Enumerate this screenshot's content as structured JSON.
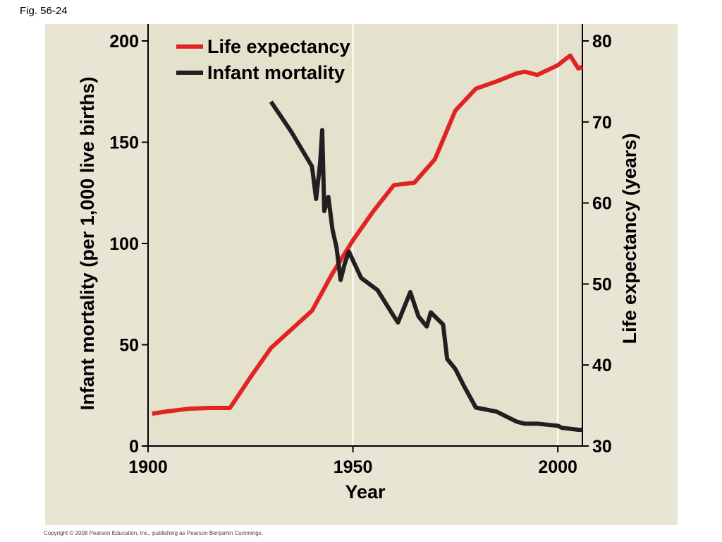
{
  "figure_label": "Fig. 56-24",
  "copyright": "Copyright © 2008 Pearson Education, Inc., publishing as Pearson Benjamin Cummings.",
  "colors": {
    "panel": "#e8e5d4",
    "plot_bg": "#e4e1cc",
    "life_expectancy": "#e02424",
    "infant_mortality": "#231f20",
    "gridline": "#ffffff"
  },
  "chart_data": {
    "type": "line",
    "xlabel": "Year",
    "ylabel_left": "Infant mortality (per 1,000 live births)",
    "ylabel_right": "Life expectancy (years)",
    "xlim": [
      1900,
      2006
    ],
    "ylim_left": [
      0,
      200
    ],
    "ylim_right": [
      30,
      80
    ],
    "x_ticks": [
      1900,
      1950,
      2000
    ],
    "x_tick_labels": [
      "1900",
      "1950",
      "2000"
    ],
    "y_left_ticks": [
      0,
      50,
      100,
      150,
      200
    ],
    "y_left_tick_labels": [
      "0",
      "50",
      "100",
      "150",
      "200"
    ],
    "y_right_ticks": [
      30,
      40,
      50,
      60,
      70,
      80
    ],
    "y_right_tick_labels": [
      "30",
      "40",
      "50",
      "60",
      "70",
      "80"
    ],
    "vertical_gridlines": [
      1950,
      2000
    ],
    "legend_position": "top-left",
    "series": [
      {
        "name": "Life expectancy",
        "axis": "right",
        "color": "#e02424",
        "points": [
          [
            1901,
            34.0
          ],
          [
            1905,
            34.3
          ],
          [
            1910,
            34.6
          ],
          [
            1915,
            34.7
          ],
          [
            1920,
            34.7
          ],
          [
            1925,
            38.5
          ],
          [
            1930,
            42.1
          ],
          [
            1935,
            44.4
          ],
          [
            1940,
            46.7
          ],
          [
            1945,
            51.3
          ],
          [
            1950,
            55.4
          ],
          [
            1955,
            59.0
          ],
          [
            1960,
            62.2
          ],
          [
            1965,
            62.5
          ],
          [
            1970,
            65.4
          ],
          [
            1975,
            71.4
          ],
          [
            1980,
            74.1
          ],
          [
            1985,
            75.0
          ],
          [
            1990,
            76.0
          ],
          [
            1992,
            76.2
          ],
          [
            1995,
            75.8
          ],
          [
            2000,
            77.0
          ],
          [
            2003,
            78.2
          ],
          [
            2005,
            76.6
          ],
          [
            2006,
            76.8
          ]
        ]
      },
      {
        "name": "Infant mortality",
        "axis": "left",
        "color": "#231f20",
        "points": [
          [
            1930,
            170
          ],
          [
            1935,
            155
          ],
          [
            1940,
            138
          ],
          [
            1941,
            122
          ],
          [
            1942,
            140
          ],
          [
            1942.5,
            156
          ],
          [
            1943,
            116
          ],
          [
            1944,
            123
          ],
          [
            1945,
            107
          ],
          [
            1946,
            98
          ],
          [
            1947,
            82
          ],
          [
            1948,
            90
          ],
          [
            1949,
            96
          ],
          [
            1952,
            83
          ],
          [
            1956,
            77
          ],
          [
            1960,
            64
          ],
          [
            1961,
            61
          ],
          [
            1964,
            76
          ],
          [
            1966,
            64
          ],
          [
            1968,
            59
          ],
          [
            1969,
            66
          ],
          [
            1971,
            62
          ],
          [
            1972,
            60
          ],
          [
            1973,
            43
          ],
          [
            1975,
            38
          ],
          [
            1977,
            30
          ],
          [
            1980,
            19
          ],
          [
            1985,
            17
          ],
          [
            1990,
            12
          ],
          [
            1992,
            11
          ],
          [
            1995,
            11
          ],
          [
            2000,
            10
          ],
          [
            2001,
            9
          ],
          [
            2005,
            8
          ],
          [
            2006,
            8
          ]
        ]
      }
    ]
  }
}
